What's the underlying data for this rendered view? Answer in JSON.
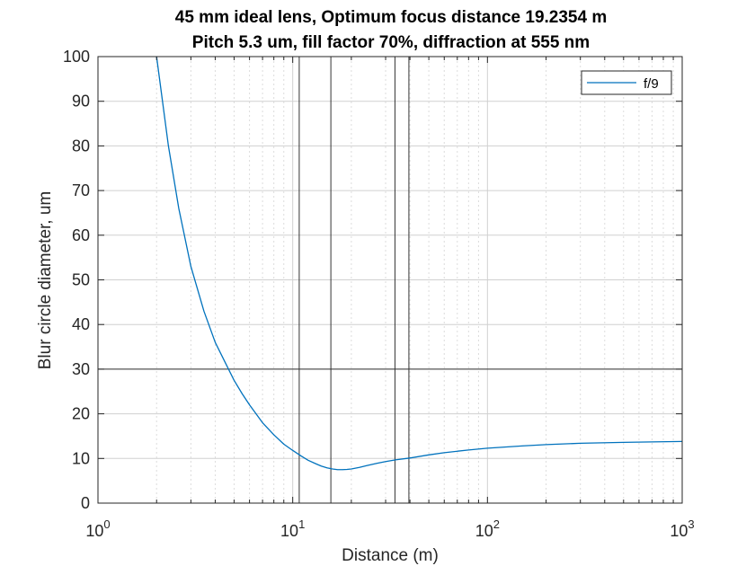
{
  "chart_data": {
    "type": "line",
    "title": "45 mm ideal lens, Optimum focus distance 19.2354 m",
    "subtitle": "Pitch 5.3 um, fill factor 70%, diffraction at 555 nm",
    "xlabel": "Distance (m)",
    "ylabel": "Blur circle diameter, um",
    "xscale": "log",
    "xlim": [
      1,
      1000
    ],
    "ylim": [
      0,
      100
    ],
    "x_tick_labels": [
      {
        "base": "10",
        "exp": "0"
      },
      {
        "base": "10",
        "exp": "1"
      },
      {
        "base": "10",
        "exp": "2"
      },
      {
        "base": "10",
        "exp": "3"
      }
    ],
    "y_ticks": [
      0,
      10,
      20,
      30,
      40,
      50,
      60,
      70,
      80,
      90,
      100
    ],
    "grid": true,
    "legend_position": "top-right",
    "series": [
      {
        "name": "f/9",
        "color": "#0072BD",
        "x": [
          2,
          2.3,
          2.6,
          3,
          3.5,
          4,
          4.5,
          5,
          5.5,
          6,
          7,
          8,
          9,
          10,
          11,
          12,
          13,
          14,
          15,
          16,
          17,
          18,
          19,
          20,
          22,
          24,
          27,
          30,
          34,
          40,
          50,
          60,
          80,
          100,
          150,
          200,
          300,
          500,
          700,
          1000
        ],
        "y": [
          100,
          80,
          66,
          53,
          43,
          36,
          31.5,
          27.5,
          24.5,
          22,
          18,
          15.3,
          13.2,
          11.8,
          10.6,
          9.6,
          8.9,
          8.3,
          7.9,
          7.65,
          7.5,
          7.5,
          7.55,
          7.65,
          8,
          8.4,
          8.9,
          9.3,
          9.7,
          10.1,
          10.8,
          11.3,
          11.9,
          12.3,
          12.8,
          13.1,
          13.4,
          13.6,
          13.7,
          13.8
        ]
      }
    ],
    "reference_lines": {
      "vertical_x": [
        10.8,
        15.7,
        33.5,
        39.5
      ],
      "horizontal_y": [
        30
      ]
    }
  }
}
